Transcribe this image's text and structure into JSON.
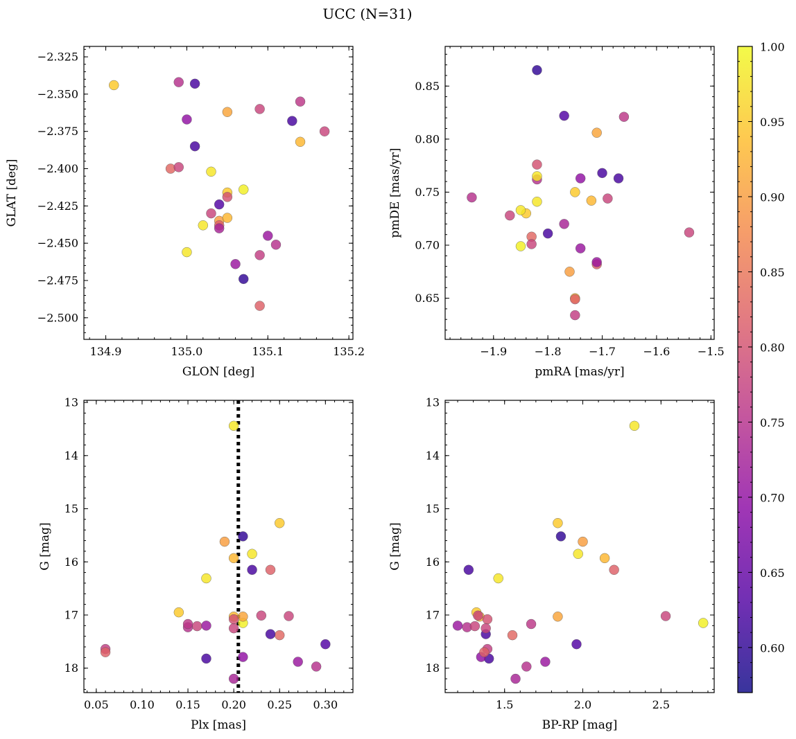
{
  "title": "UCC (N=31)",
  "colormap": {
    "name": "plasma",
    "stops": [
      "#0d0887",
      "#5302a3",
      "#8b0aa5",
      "#b83289",
      "#db5c68",
      "#f48849",
      "#febd2a",
      "#f0f921"
    ],
    "min": 0.57,
    "max": 1.0,
    "ticks": [
      "0.60",
      "0.65",
      "0.70",
      "0.75",
      "0.80",
      "0.85",
      "0.90",
      "0.95",
      "1.00"
    ],
    "tick_values": [
      0.6,
      0.65,
      0.7,
      0.75,
      0.8,
      0.85,
      0.9,
      0.95,
      1.0
    ]
  },
  "stars": {
    "p": [
      0.95,
      0.75,
      0.62,
      0.7,
      0.62,
      0.83,
      0.78,
      0.98,
      0.95,
      0.93,
      0.78,
      0.62,
      0.8,
      0.71,
      0.78,
      0.99,
      0.98,
      0.9,
      0.93,
      0.82,
      0.63,
      0.71,
      0.77,
      0.82,
      0.98,
      0.75,
      0.76,
      0.91,
      0.78,
      0.6,
      0.73
    ],
    "glon": [
      134.91,
      134.99,
      135.01,
      135.0,
      135.01,
      134.98,
      134.99,
      135.03,
      135.05,
      135.14,
      135.09,
      135.13,
      135.05,
      135.06,
      135.03,
      135.07,
      135.02,
      135.04,
      135.05,
      135.04,
      135.04,
      135.1,
      135.09,
      135.09,
      135.0,
      135.11,
      135.14,
      135.05,
      135.17,
      135.07,
      135.04
    ],
    "glat": [
      -2.344,
      -2.342,
      -2.343,
      -2.367,
      -2.385,
      -2.4,
      -2.399,
      -2.402,
      -2.416,
      -2.382,
      -2.36,
      -2.368,
      -2.419,
      -2.464,
      -2.43,
      -2.414,
      -2.438,
      -2.435,
      -2.433,
      -2.438,
      -2.424,
      -2.445,
      -2.458,
      -2.492,
      -2.456,
      -2.451,
      -2.355,
      -2.362,
      -2.375,
      -2.474,
      -2.44
    ],
    "pmra": [
      -1.84,
      -1.82,
      -1.7,
      -1.74,
      -1.67,
      -1.83,
      -1.87,
      -1.85,
      -1.75,
      -1.72,
      -1.69,
      -1.8,
      -1.82,
      -1.74,
      -1.83,
      -1.85,
      -1.82,
      -1.76,
      -1.75,
      -1.71,
      -1.77,
      -1.71,
      -1.75,
      -1.75,
      -1.82,
      -1.94,
      -1.66,
      -1.71,
      -1.54,
      -1.82,
      -1.77
    ],
    "pmde": [
      0.73,
      0.762,
      0.768,
      0.763,
      0.763,
      0.708,
      0.728,
      0.733,
      0.75,
      0.742,
      0.744,
      0.711,
      0.776,
      0.697,
      0.701,
      0.699,
      0.741,
      0.675,
      0.65,
      0.682,
      0.822,
      0.684,
      0.634,
      0.649,
      0.765,
      0.745,
      0.821,
      0.806,
      0.712,
      0.865,
      0.72
    ],
    "plx": [
      0.14,
      0.15,
      0.17,
      0.21,
      0.22,
      0.25,
      0.16,
      0.2,
      0.25,
      0.2,
      0.23,
      0.24,
      0.2,
      0.17,
      0.2,
      0.21,
      0.22,
      0.19,
      0.2,
      0.24,
      0.3,
      0.27,
      0.06,
      0.06,
      0.17,
      0.29,
      0.15,
      0.21,
      0.26,
      0.21,
      0.2
    ],
    "g": [
      16.95,
      17.23,
      17.82,
      17.79,
      16.15,
      17.38,
      17.21,
      13.44,
      15.27,
      17.03,
      17.01,
      17.36,
      17.08,
      17.2,
      17.25,
      17.15,
      15.85,
      15.62,
      15.93,
      16.15,
      17.55,
      17.88,
      17.64,
      17.7,
      16.31,
      17.97,
      17.17,
      17.03,
      17.02,
      15.52,
      18.2
    ],
    "bprp": [
      1.32,
      1.26,
      1.4,
      1.35,
      1.27,
      1.55,
      1.31,
      2.33,
      1.84,
      1.34,
      1.33,
      1.38,
      1.39,
      1.2,
      1.38,
      2.77,
      1.97,
      2.0,
      2.14,
      2.2,
      1.96,
      1.76,
      1.39,
      1.37,
      1.46,
      1.64,
      1.67,
      1.84,
      2.53,
      1.86,
      1.57
    ]
  },
  "panels": [
    {
      "id": "glon-glat",
      "type": "scatter",
      "xkey": "glon",
      "ykey": "glat",
      "xlabel": "GLON [deg]",
      "ylabel": "GLAT [deg]",
      "xlim": [
        134.873,
        135.205
      ],
      "ylim": [
        -2.5145,
        -2.318
      ],
      "yinvert": false,
      "xticks": [
        134.9,
        135.0,
        135.1,
        135.2
      ],
      "xticklabels": [
        "134.9",
        "135.0",
        "135.1",
        "135.2"
      ],
      "xminor": 0.02,
      "yticks": [
        -2.325,
        -2.35,
        -2.375,
        -2.4,
        -2.425,
        -2.45,
        -2.475,
        -2.5
      ],
      "yticklabels": [
        "−2.325",
        "−2.350",
        "−2.375",
        "−2.400",
        "−2.425",
        "−2.450",
        "−2.475",
        "−2.500"
      ],
      "yminor": 0.005,
      "vline": null
    },
    {
      "id": "pmra-pmde",
      "type": "scatter",
      "xkey": "pmra",
      "ykey": "pmde",
      "xlabel": "pmRA [mas/yr]",
      "ylabel": "pmDE [mas/yr]",
      "xlim": [
        -1.989,
        -1.494
      ],
      "ylim": [
        0.6112,
        0.8874
      ],
      "yinvert": false,
      "xticks": [
        -1.9,
        -1.8,
        -1.7,
        -1.6,
        -1.5
      ],
      "xticklabels": [
        "−1.9",
        "−1.8",
        "−1.7",
        "−1.6",
        "−1.5"
      ],
      "xminor": 0.02,
      "yticks": [
        0.65,
        0.7,
        0.75,
        0.8,
        0.85
      ],
      "yticklabels": [
        "0.65",
        "0.70",
        "0.75",
        "0.80",
        "0.85"
      ],
      "yminor": 0.01,
      "vline": null
    },
    {
      "id": "plx-g",
      "type": "scatter",
      "xkey": "plx",
      "ykey": "g",
      "xlabel": "Plx [mas]",
      "ylabel": "G [mag]",
      "xlim": [
        0.0365,
        0.33
      ],
      "ylim": [
        12.96,
        18.46
      ],
      "yinvert": true,
      "xticks": [
        0.05,
        0.1,
        0.15,
        0.2,
        0.25,
        0.3
      ],
      "xticklabels": [
        "0.05",
        "0.10",
        "0.15",
        "0.20",
        "0.25",
        "0.30"
      ],
      "xminor": 0.01,
      "yticks": [
        13,
        14,
        15,
        16,
        17,
        18
      ],
      "yticklabels": [
        "13",
        "14",
        "15",
        "16",
        "17",
        "18"
      ],
      "yminor": 0.2,
      "vline": 0.205
    },
    {
      "id": "bprp-g",
      "type": "scatter",
      "xkey": "bprp",
      "ykey": "g",
      "xlabel": "BP-RP [mag]",
      "ylabel": "G [mag]",
      "xlim": [
        1.12,
        2.84
      ],
      "ylim": [
        12.96,
        18.46
      ],
      "yinvert": true,
      "xticks": [
        1.5,
        2.0,
        2.5
      ],
      "xticklabels": [
        "1.5",
        "2.0",
        "2.5"
      ],
      "xminor": 0.1,
      "yticks": [
        13,
        14,
        15,
        16,
        17,
        18
      ],
      "yticklabels": [
        "13",
        "14",
        "15",
        "16",
        "17",
        "18"
      ],
      "yminor": 0.2,
      "vline": null
    }
  ]
}
